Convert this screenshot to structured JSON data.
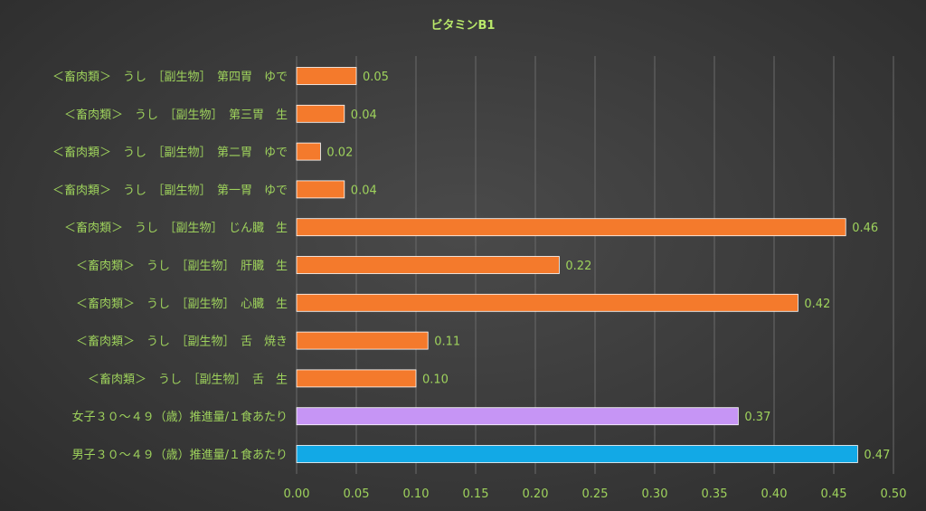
{
  "chart_data": {
    "type": "bar",
    "orientation": "horizontal",
    "title": "ビタミンB1",
    "xlim": [
      0,
      0.5
    ],
    "x_ticks": [
      "0.00",
      "0.05",
      "0.10",
      "0.15",
      "0.20",
      "0.25",
      "0.30",
      "0.35",
      "0.40",
      "0.45",
      "0.50"
    ],
    "grid": true,
    "categories": [
      "＜畜肉類＞　うし　［副生物］　第四胃　ゆで",
      "＜畜肉類＞　うし　［副生物］　第三胃　生",
      "＜畜肉類＞　うし　［副生物］　第二胃　ゆで",
      "＜畜肉類＞　うし　［副生物］　第一胃　ゆで",
      "＜畜肉類＞　うし　［副生物］　じん臓　生",
      "＜畜肉類＞　うし　［副生物］　肝臓　生",
      "＜畜肉類＞　うし　［副生物］　心臓　生",
      "＜畜肉類＞　うし　［副生物］　舌　焼き",
      "＜畜肉類＞　うし　［副生物］　舌　生",
      "女子３０～４９（歳）推進量/１食あたり",
      "男子３０～４９（歳）推進量/１食あたり"
    ],
    "values": [
      0.05,
      0.04,
      0.02,
      0.04,
      0.46,
      0.22,
      0.42,
      0.11,
      0.1,
      0.37,
      0.47
    ],
    "value_labels": [
      "0.05",
      "0.04",
      "0.02",
      "0.04",
      "0.46",
      "0.22",
      "0.42",
      "0.11",
      "0.10",
      "0.37",
      "0.47"
    ],
    "bar_colors": [
      "#f47a2c",
      "#f47a2c",
      "#f47a2c",
      "#f47a2c",
      "#f47a2c",
      "#f47a2c",
      "#f47a2c",
      "#f47a2c",
      "#f47a2c",
      "#c695f5",
      "#12a9e6"
    ],
    "colors": {
      "title": "#b9e86a",
      "label": "#9ed25c",
      "grid": "#6a6a6a",
      "bar_outline": "#ffffff"
    }
  }
}
